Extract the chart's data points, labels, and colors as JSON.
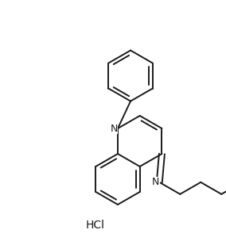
{
  "background": "#ffffff",
  "line_color": "#1a1a1a",
  "line_width": 1.4,
  "figsize": [
    2.84,
    3.09
  ],
  "dpi": 100,
  "hcl_text": "HCl",
  "N_label_fontsize": 9,
  "hcl_fontsize": 10
}
